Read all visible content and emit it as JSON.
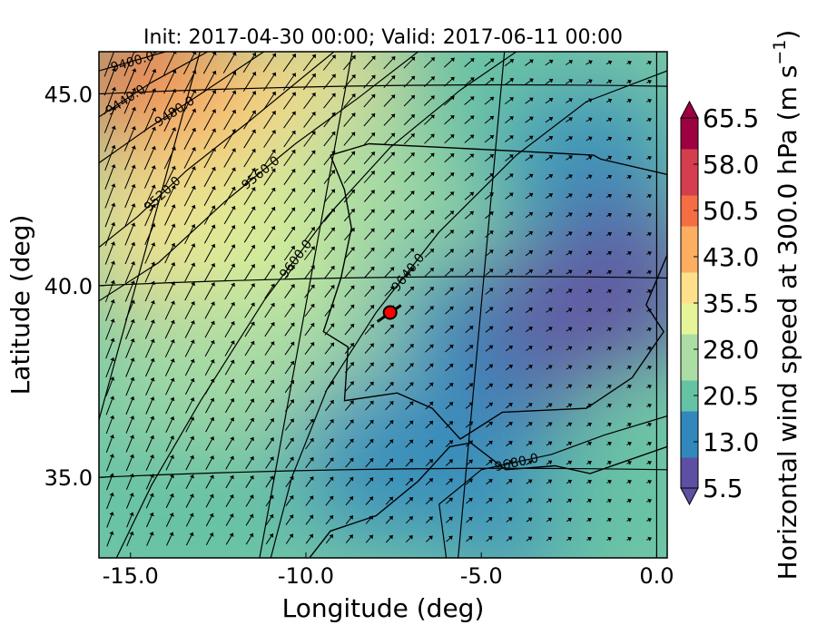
{
  "chart_data": {
    "type": "heatmap",
    "title": "Init: 2017-04-30 00:00; Valid: 2017-06-11 00:00",
    "xlabel": "Longitude (deg)",
    "ylabel": "Latitude (deg)",
    "xlim": [
      -15.9,
      0.3
    ],
    "ylim": [
      32.9,
      46.1
    ],
    "x_ticks": [
      -15.0,
      -10.0,
      -5.0,
      0.0
    ],
    "x_tick_labels": [
      "-15.0",
      "-10.0",
      "-5.0",
      "0.0"
    ],
    "y_ticks": [
      35.0,
      40.0,
      45.0
    ],
    "y_tick_labels": [
      "35.0",
      "40.0",
      "45.0"
    ],
    "colorbar": {
      "label": "Horizontal wind speed at 300.0 hPa (m s$^{-1}$)",
      "label_main": "Horizontal wind speed at 300.0 hPa (m s",
      "label_exp": "−1",
      "label_close": ")",
      "min": 5.5,
      "max": 65.5,
      "step": 2.5,
      "extend": "both",
      "tick_values": [
        5.5,
        13.0,
        20.5,
        28.0,
        35.5,
        43.0,
        50.5,
        58.0,
        65.5
      ],
      "tick_labels": [
        "5.5",
        "13.0",
        "20.5",
        "28.0",
        "35.5",
        "43.0",
        "50.5",
        "58.0",
        "65.5"
      ],
      "colormap": "Spectral_r",
      "colors": [
        "#5e4fa2",
        "#3288bd",
        "#66c2a5",
        "#abdda4",
        "#e6f598",
        "#fee08b",
        "#fdae61",
        "#f46d43",
        "#d53e4f",
        "#9e0142"
      ]
    },
    "wind_speed_field": [
      {
        "lon": -14.5,
        "lat": 45.3,
        "speed": 50
      },
      {
        "lon": -12.0,
        "lat": 44.5,
        "speed": 44
      },
      {
        "lon": -9.5,
        "lat": 45.0,
        "speed": 38
      },
      {
        "lon": -14.5,
        "lat": 41.5,
        "speed": 36
      },
      {
        "lon": -11.0,
        "lat": 41.5,
        "speed": 32
      },
      {
        "lon": -8.0,
        "lat": 43.0,
        "speed": 28
      },
      {
        "lon": -5.0,
        "lat": 45.0,
        "speed": 22
      },
      {
        "lon": -2.0,
        "lat": 43.0,
        "speed": 12
      },
      {
        "lon": -1.0,
        "lat": 40.0,
        "speed": 8
      },
      {
        "lon": -4.0,
        "lat": 38.5,
        "speed": 10
      },
      {
        "lon": -6.5,
        "lat": 38.0,
        "speed": 15
      },
      {
        "lon": -9.5,
        "lat": 38.0,
        "speed": 24
      },
      {
        "lon": -13.0,
        "lat": 37.5,
        "speed": 26
      },
      {
        "lon": -8.0,
        "lat": 35.5,
        "speed": 16
      },
      {
        "lon": -12.5,
        "lat": 34.0,
        "speed": 18
      },
      {
        "lon": -4.0,
        "lat": 34.5,
        "speed": 14
      },
      {
        "lon": -1.0,
        "lat": 34.5,
        "speed": 22
      },
      {
        "lon": -14.8,
        "lat": 34.2,
        "speed": 21
      }
    ],
    "height_contours": {
      "units": "m",
      "levels": [
        {
          "value": 9400.0,
          "label": "9400.0",
          "points": [
            [
              -15.9,
              45.6
            ],
            [
              -14.0,
              46.1
            ]
          ]
        },
        {
          "value": 9440.0,
          "label": "9440.0",
          "points": [
            [
              -15.9,
              44.4
            ],
            [
              -14.4,
              45.3
            ],
            [
              -12.8,
              46.1
            ]
          ]
        },
        {
          "value": 9480.0,
          "label": "9480.0",
          "points": [
            [
              -15.9,
              43.2
            ],
            [
              -14.5,
              44.1
            ],
            [
              -13.0,
              45.0
            ],
            [
              -11.2,
              46.1
            ]
          ]
        },
        {
          "value": 9520.0,
          "label": "9520.0",
          "points": [
            [
              -15.9,
              41.0
            ],
            [
              -14.8,
              41.8
            ],
            [
              -13.4,
              43.0
            ],
            [
              -11.6,
              44.3
            ],
            [
              -9.2,
              46.1
            ]
          ]
        },
        {
          "value": 9560.0,
          "label": "9560.0",
          "points": [
            [
              -15.9,
              39.6
            ],
            [
              -14.2,
              40.6
            ],
            [
              -12.3,
              42.2
            ],
            [
              -10.3,
              43.7
            ],
            [
              -8.5,
              44.9
            ],
            [
              -6.8,
              46.1
            ]
          ]
        },
        {
          "value": 9600.0,
          "label": "9600.0",
          "points": [
            [
              -15.4,
              32.9
            ],
            [
              -14.4,
              34.8
            ],
            [
              -13.0,
              37.0
            ],
            [
              -11.2,
              39.6
            ],
            [
              -9.4,
              41.8
            ],
            [
              -7.6,
              43.6
            ],
            [
              -5.6,
              45.1
            ],
            [
              -4.0,
              46.1
            ]
          ]
        },
        {
          "value": 9640.0,
          "label": "9640.0",
          "points": [
            [
              -11.0,
              32.9
            ],
            [
              -10.4,
              35.0
            ],
            [
              -9.4,
              37.3
            ],
            [
              -8.0,
              39.3
            ],
            [
              -6.2,
              41.4
            ],
            [
              -4.0,
              43.4
            ],
            [
              -2.0,
              44.8
            ],
            [
              0.3,
              45.6
            ]
          ]
        },
        {
          "value": 9680.0,
          "label": "9680.0",
          "points": [
            [
              -6.0,
              32.9
            ],
            [
              -6.2,
              34.3
            ],
            [
              -5.0,
              35.2
            ],
            [
              -3.0,
              35.6
            ],
            [
              -1.5,
              36.1
            ],
            [
              0.3,
              36.6
            ]
          ]
        }
      ]
    },
    "marker": {
      "lon": -7.6,
      "lat": 39.3,
      "color": "#ff0000"
    }
  }
}
